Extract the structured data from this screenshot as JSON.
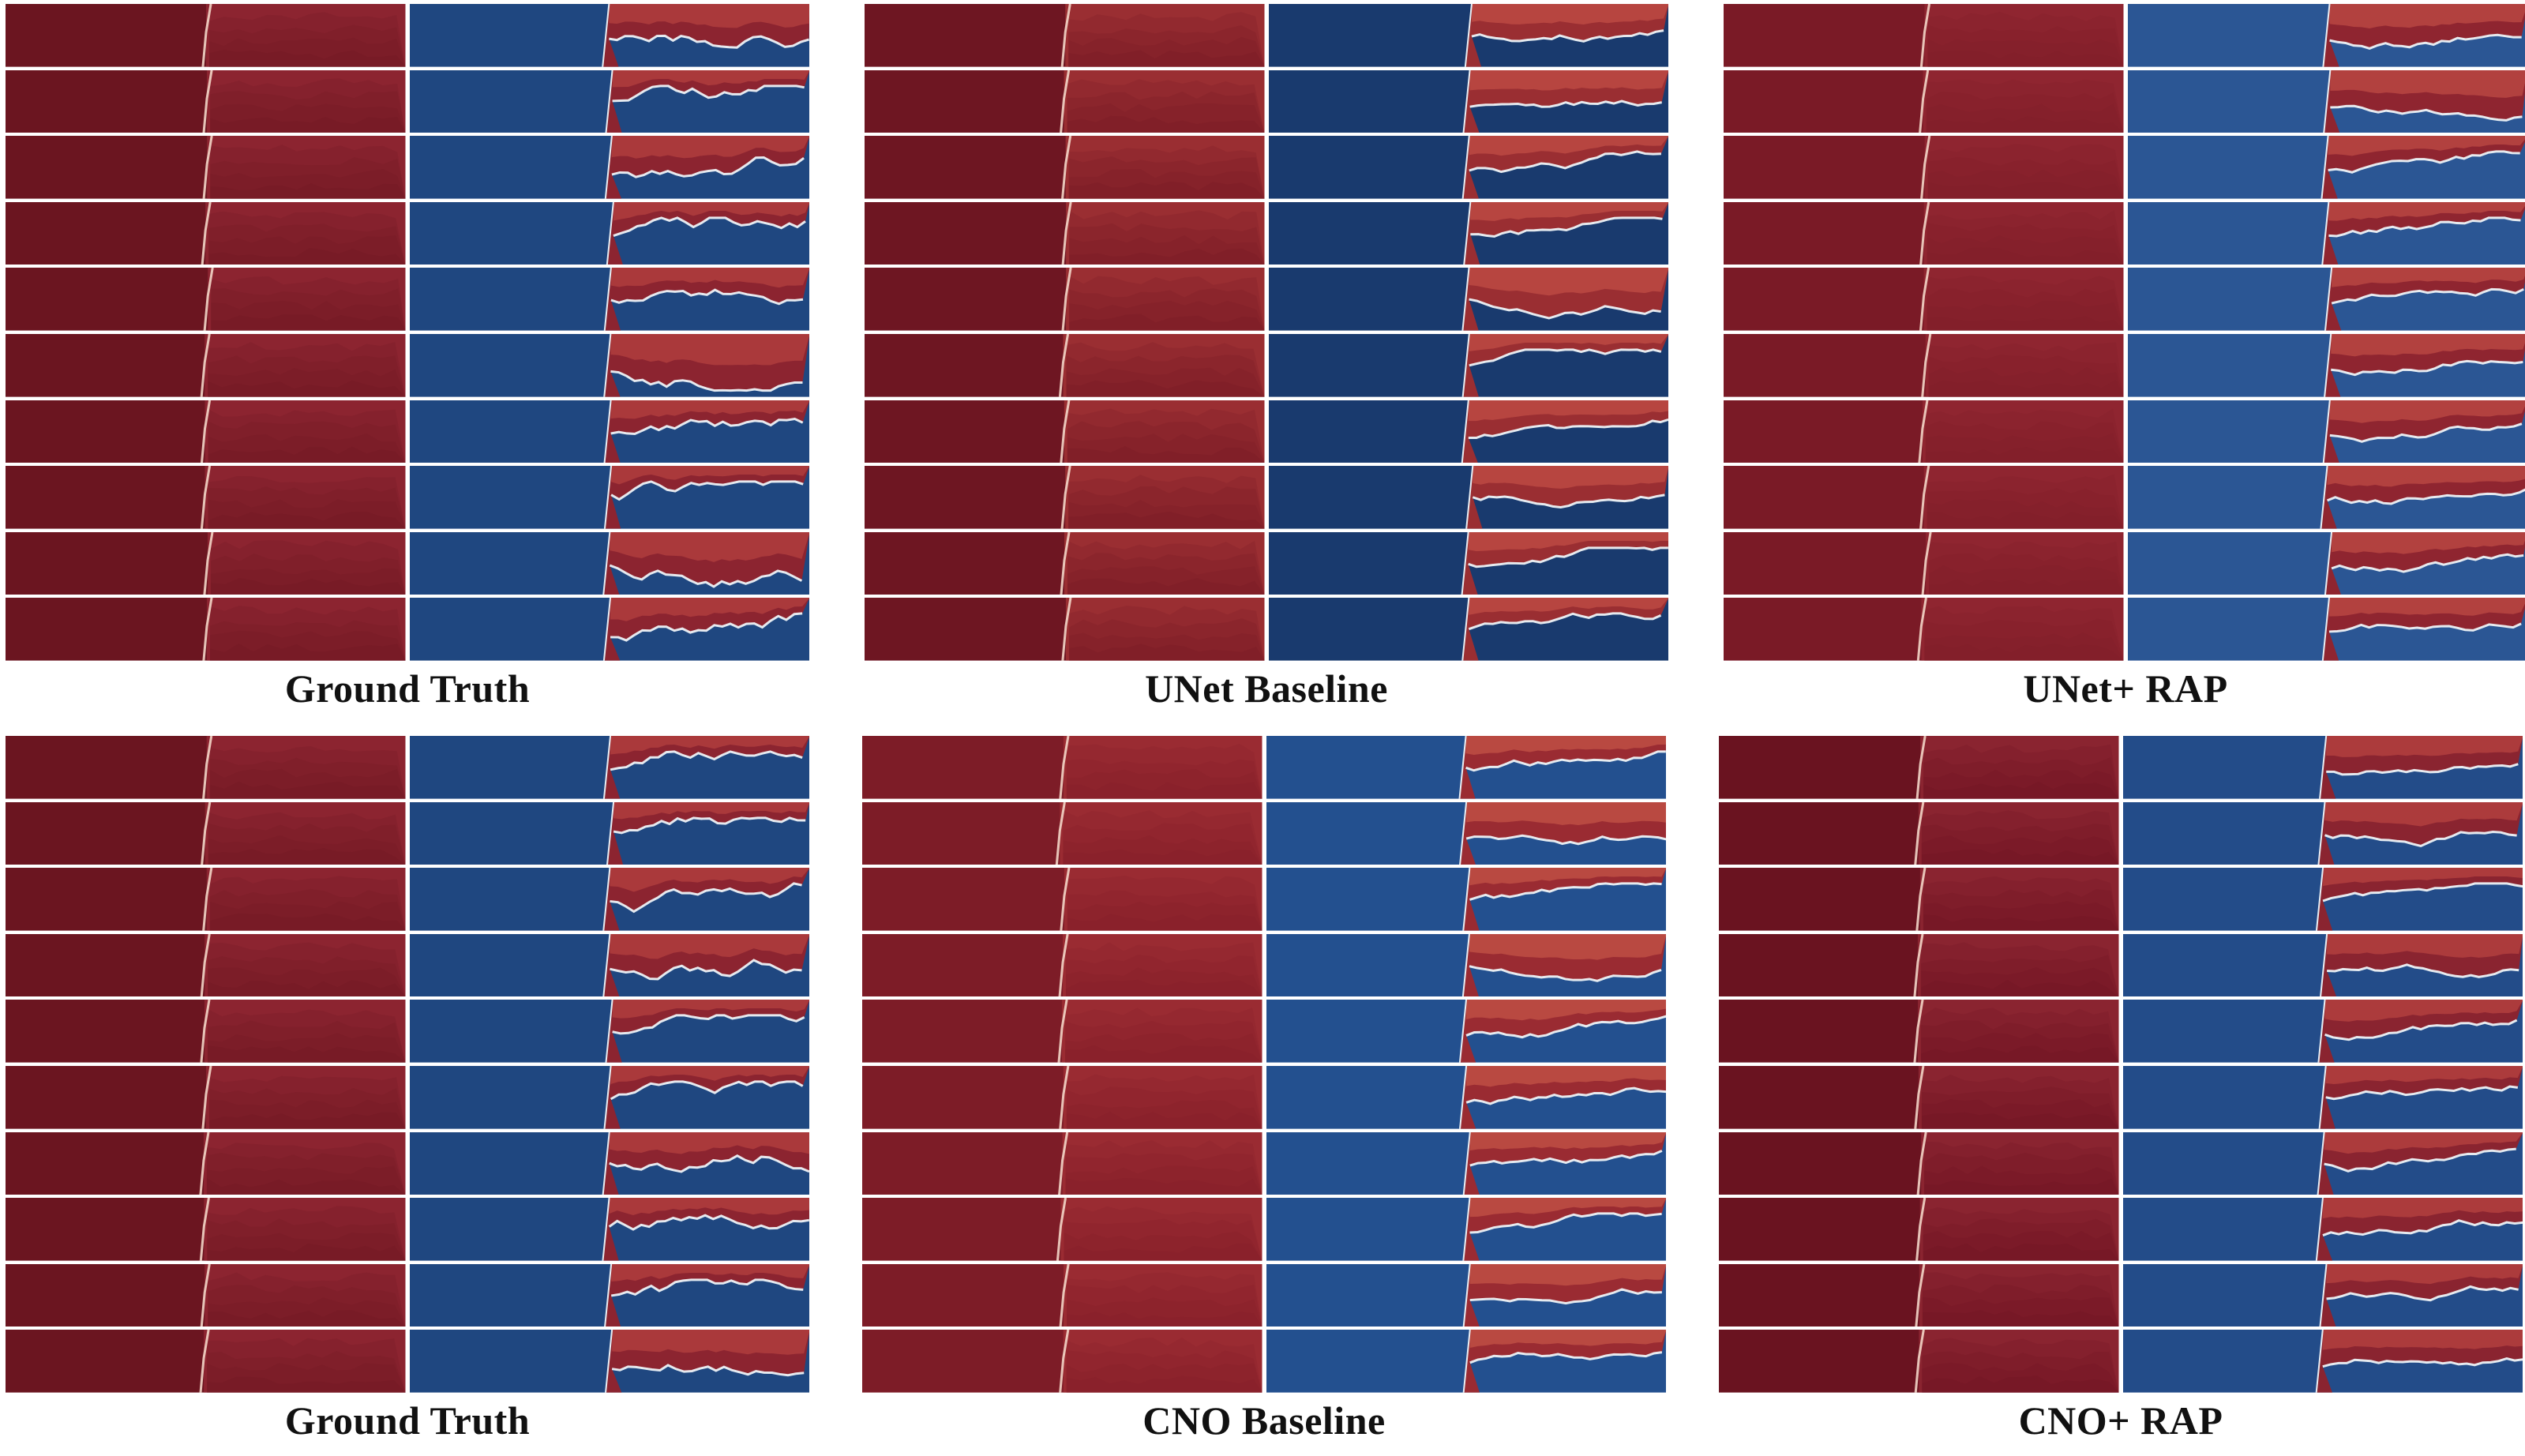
{
  "figure": {
    "panels": [
      {
        "caption": "Ground Truth",
        "family": "gt",
        "colors": {
          "dark": "#6b1520",
          "mid": "#8c2430",
          "blue": "#1f4780",
          "bright": "#c24a45"
        }
      },
      {
        "caption": "UNet Baseline",
        "family": "unet",
        "colors": {
          "dark": "#6e1622",
          "mid": "#9a2e32",
          "blue": "#193a6e",
          "bright": "#d05a4c"
        }
      },
      {
        "caption": "UNet+ RAP",
        "family": "unet_rap",
        "colors": {
          "dark": "#7a1a26",
          "mid": "#8f2530",
          "blue": "#2b5694",
          "bright": "#cf5a4d"
        }
      },
      {
        "caption": "Ground Truth",
        "family": "gt",
        "colors": {
          "dark": "#6b1520",
          "mid": "#8c2430",
          "blue": "#1f4780",
          "bright": "#c24a45"
        }
      },
      {
        "caption": "CNO Baseline",
        "family": "cno",
        "colors": {
          "dark": "#7d1c27",
          "mid": "#9a2b32",
          "blue": "#23508f",
          "bright": "#d4634f"
        }
      },
      {
        "caption": "CNO+ RAP",
        "family": "cno_rap",
        "colors": {
          "dark": "#6a1320",
          "mid": "#8a2430",
          "blue": "#234c89",
          "bright": "#c94f47"
        }
      }
    ],
    "rows_per_panel": 10,
    "colormap": "red-blue diverging"
  }
}
